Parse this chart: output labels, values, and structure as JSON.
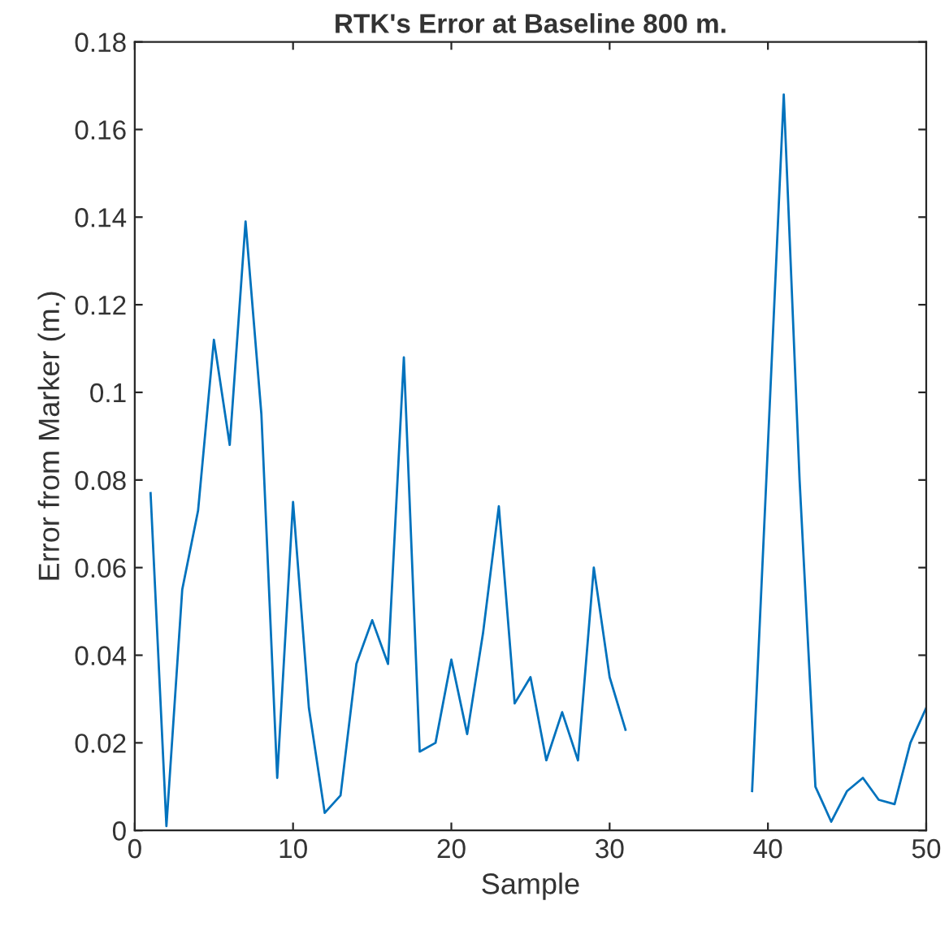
{
  "chart_data": {
    "type": "line",
    "title": "RTK's Error at Baseline 800 m.",
    "xlabel": "Sample",
    "ylabel": "Error from Marker (m.)",
    "x": [
      1,
      2,
      3,
      4,
      5,
      6,
      7,
      8,
      9,
      10,
      11,
      12,
      13,
      14,
      15,
      16,
      17,
      18,
      19,
      20,
      21,
      22,
      23,
      24,
      25,
      26,
      27,
      28,
      29,
      30,
      31,
      32,
      33,
      34,
      35,
      36,
      37,
      38,
      39,
      40,
      41,
      42,
      43,
      44,
      45,
      46,
      47,
      48,
      49,
      50
    ],
    "series": [
      {
        "color": "#0072bd",
        "values": [
          0.077,
          0.001,
          0.055,
          0.073,
          0.112,
          0.088,
          0.139,
          0.095,
          0.012,
          0.075,
          0.028,
          0.004,
          0.008,
          0.038,
          0.048,
          0.038,
          0.108,
          0.018,
          0.02,
          0.039,
          0.022,
          0.045,
          0.074,
          0.029,
          0.035,
          0.016,
          0.027,
          0.016,
          0.06,
          0.035,
          0.023,
          null,
          null,
          null,
          null,
          null,
          null,
          null,
          0.009,
          0.088,
          0.168,
          0.08,
          0.01,
          0.002,
          0.009,
          0.012,
          0.007,
          0.006,
          0.02,
          0.028
        ]
      }
    ],
    "xlim": [
      0,
      50
    ],
    "xticks": [
      0,
      10,
      20,
      30,
      40,
      50
    ],
    "ylim": [
      0,
      0.18
    ],
    "yticks": [
      0,
      0.02,
      0.04,
      0.06,
      0.08,
      0.1,
      0.12,
      0.14,
      0.16,
      0.18
    ],
    "grid": false,
    "legend": false,
    "marker": "none",
    "line_style": "solid"
  }
}
